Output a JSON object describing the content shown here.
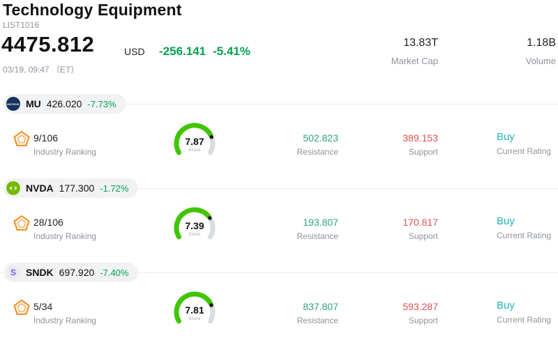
{
  "header": {
    "title": "Technology Equipment",
    "list_id": "LIST1016",
    "price": "4475.812",
    "currency": "USD",
    "change": "-256.141",
    "change_percent": "-5.41%",
    "datetime": "03/19, 09:47 （ET）",
    "market_cap_value": "13.83T",
    "market_cap_label": "Market Cap",
    "volume_value": "1.18B",
    "volume_label": "Volume"
  },
  "labels": {
    "industry_ranking": "Industry Ranking",
    "resistance": "Resistance",
    "support": "Support",
    "current_rating": "Current Rating",
    "score": "Score"
  },
  "stocks": [
    {
      "ticker": "MU",
      "price": "426.020",
      "change": "-7.73%",
      "industry_rank": "9/106",
      "score": 7.87,
      "resistance": "502.823",
      "support": "389.153",
      "rating": "Buy",
      "logo_text": "MICRON"
    },
    {
      "ticker": "NVDA",
      "price": "177.300",
      "change": "-1.72%",
      "industry_rank": "28/106",
      "score": 7.39,
      "resistance": "193.807",
      "support": "170.817",
      "rating": "Buy",
      "logo_text": ""
    },
    {
      "ticker": "SNDK",
      "price": "697.920",
      "change": "-7.40%",
      "industry_rank": "5/34",
      "score": 7.81,
      "resistance": "837.807",
      "support": "593.287",
      "rating": "Buy",
      "logo_text": "S"
    }
  ],
  "colors": {
    "down_green": "#00a24e",
    "resistance_teal": "#2aa57e",
    "support_red": "#e25050",
    "rating_teal": "#1fb3bb",
    "gauge_green": "#3fc600",
    "gauge_track": "#d9dde1",
    "pill_bg": "#f1f2f4",
    "muted": "#8d939c",
    "text": "#111111",
    "pentagon_orange": "#f08b1f"
  }
}
